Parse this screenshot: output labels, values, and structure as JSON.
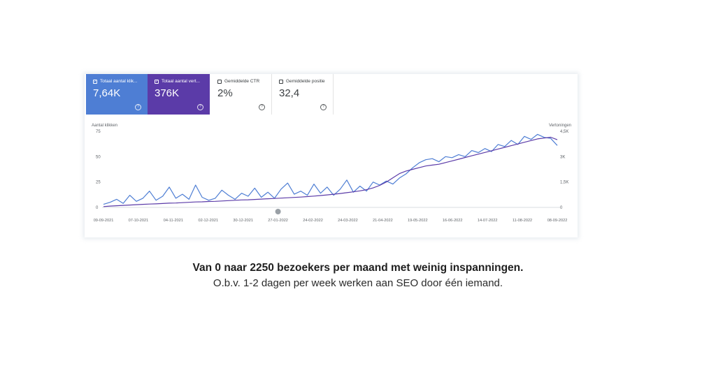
{
  "cards": [
    {
      "label": "Totaal aantal klik...",
      "value": "7,64K",
      "checked": true
    },
    {
      "label": "Totaal aantal vert...",
      "value": "376K",
      "checked": true
    },
    {
      "label": "Gemiddelde CTR",
      "value": "2%",
      "checked": false
    },
    {
      "label": "Gemiddelde positie",
      "value": "32,4",
      "checked": false
    }
  ],
  "caption": {
    "main": "Van 0 naar 2250 bezoekers per maand met weinig inspanningen.",
    "sub": "O.b.v. 1-2 dagen per week werken aan SEO door één iemand."
  },
  "colors": {
    "clicks": "#4e7ed4",
    "impressions": "#5b3ba8"
  },
  "chart_data": {
    "type": "line",
    "ylabel_left": "Aantal klikken",
    "ylabel_right": "Vertoningen",
    "left_ticks": [
      "75",
      "50",
      "25",
      "0"
    ],
    "right_ticks": [
      "4,5K",
      "3K",
      "1,5K",
      "0"
    ],
    "ylim_left": [
      0,
      75
    ],
    "ylim_right": [
      0,
      4500
    ],
    "x_ticks": [
      "09-09-2021",
      "07-10-2021",
      "04-11-2021",
      "02-12-2021",
      "30-12-2021",
      "27-01-2022",
      "24-02-2022",
      "24-03-2022",
      "21-04-2022",
      "19-05-2022",
      "16-06-2022",
      "14-07-2022",
      "11-08-2022",
      "08-09-2022"
    ],
    "grid": false,
    "series": [
      {
        "name": "Totaal aantal klikken",
        "axis": "left",
        "color": "#4e7ed4",
        "values": [
          3,
          5,
          8,
          4,
          12,
          6,
          9,
          16,
          7,
          11,
          20,
          9,
          13,
          8,
          22,
          10,
          7,
          9,
          17,
          12,
          8,
          14,
          11,
          19,
          10,
          15,
          9,
          18,
          24,
          13,
          16,
          12,
          23,
          14,
          20,
          12,
          18,
          27,
          15,
          21,
          16,
          25,
          22,
          26,
          23,
          29,
          33,
          39,
          44,
          47,
          48,
          45,
          50,
          49,
          52,
          50,
          56,
          54,
          58,
          55,
          62,
          60,
          66,
          62,
          70,
          67,
          72,
          69,
          68,
          61
        ]
      },
      {
        "name": "Totaal aantal vertoningen",
        "axis": "right",
        "color": "#5b3ba8",
        "values": [
          50,
          80,
          100,
          120,
          140,
          160,
          180,
          200,
          210,
          230,
          250,
          260,
          280,
          300,
          320,
          330,
          350,
          360,
          380,
          400,
          420,
          440,
          450,
          470,
          490,
          510,
          530,
          550,
          570,
          590,
          610,
          640,
          670,
          700,
          740,
          780,
          820,
          870,
          920,
          980,
          1050,
          1150,
          1300,
          1500,
          1750,
          2000,
          2150,
          2250,
          2350,
          2450,
          2500,
          2550,
          2650,
          2750,
          2850,
          2950,
          3050,
          3150,
          3250,
          3350,
          3450,
          3550,
          3650,
          3750,
          3850,
          3950,
          4050,
          4100,
          4150,
          4000
        ]
      }
    ],
    "annotation_marker_at": "27-01-2022"
  }
}
